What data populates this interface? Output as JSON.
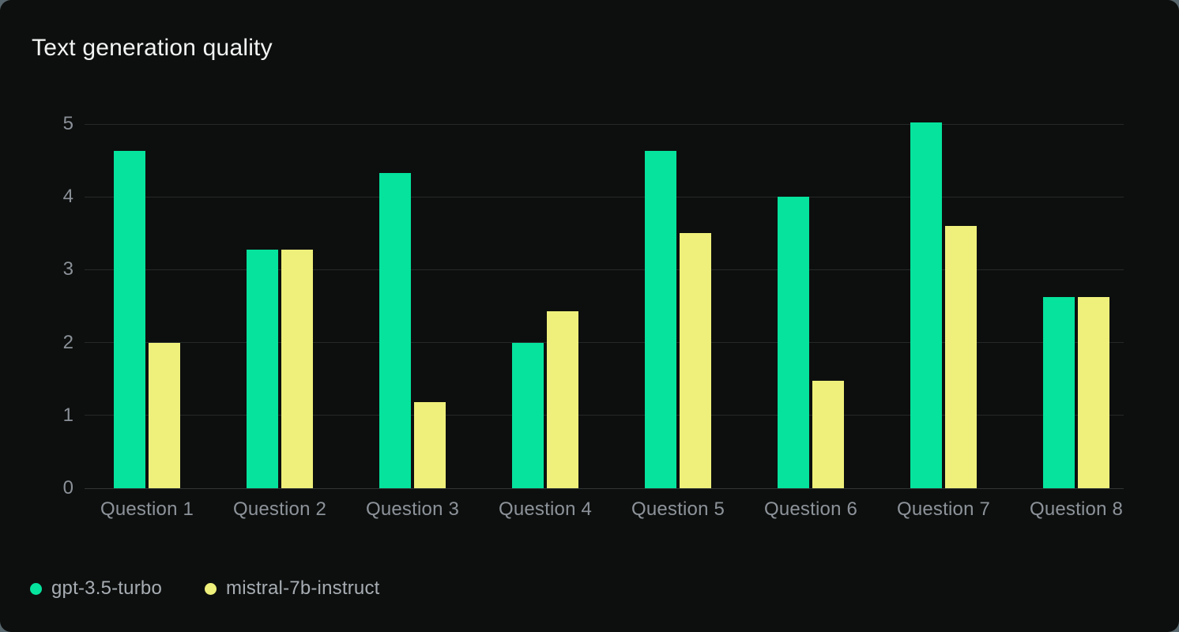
{
  "chart_data": {
    "type": "bar",
    "title": "Text generation quality",
    "categories": [
      "Question 1",
      "Question 2",
      "Question 3",
      "Question 4",
      "Question 5",
      "Question 6",
      "Question 7",
      "Question 8"
    ],
    "series": [
      {
        "name": "gpt-3.5-turbo",
        "color": "#05e39d",
        "values": [
          4.63,
          3.28,
          4.33,
          2.0,
          4.63,
          4.0,
          5.02,
          2.63
        ]
      },
      {
        "name": "mistral-7b-instruct",
        "color": "#eef07b",
        "values": [
          2.0,
          3.28,
          1.18,
          2.43,
          3.5,
          1.47,
          3.6,
          2.63
        ]
      }
    ],
    "xlabel": "",
    "ylabel": "",
    "ylim": [
      0,
      5
    ],
    "yticks": [
      0,
      1,
      2,
      3,
      4,
      5
    ],
    "grid": true,
    "legend_position": "bottom-left"
  },
  "theme": {
    "card_background": "#0d0f0e",
    "title_color": "#f2f4f3",
    "grid_color": "#242928",
    "baseline_color": "#303635",
    "axis_tick_color": "#8b9198",
    "legend_text_color": "#a7adb3"
  }
}
